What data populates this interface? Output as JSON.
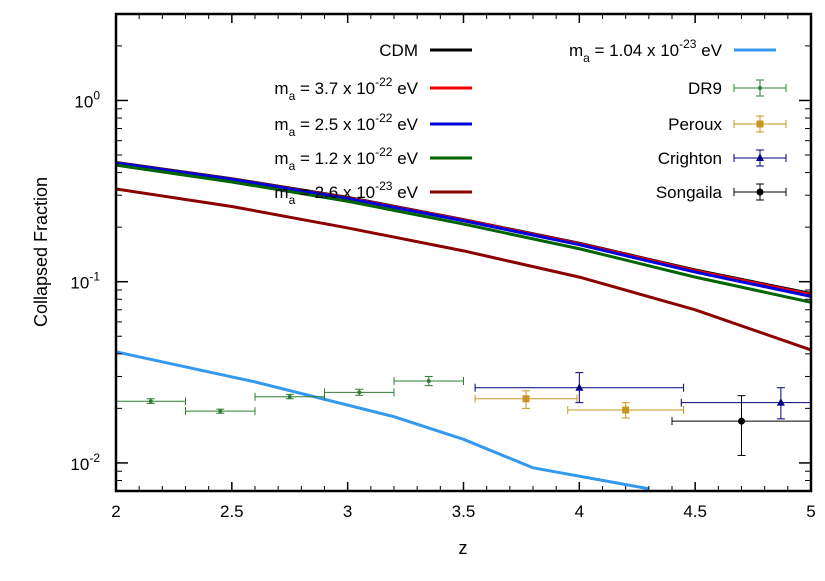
{
  "chart_data": {
    "type": "line",
    "xlabel": "z",
    "ylabel": "Collapsed Fraction",
    "xlim": [
      2,
      5
    ],
    "ylim": [
      0.007,
      3
    ],
    "yscale": "log",
    "grid": false,
    "legend_position": "top, two columns",
    "x_ticks": [
      {
        "value": 2,
        "label": "2"
      },
      {
        "value": 2.5,
        "label": "2.5"
      },
      {
        "value": 3,
        "label": "3"
      },
      {
        "value": 3.5,
        "label": "3.5"
      },
      {
        "value": 4,
        "label": "4"
      },
      {
        "value": 4.5,
        "label": "4.5"
      },
      {
        "value": 5,
        "label": "5"
      }
    ],
    "y_ticks": [
      {
        "value": 0.01,
        "base": "10",
        "exp": "-2"
      },
      {
        "value": 0.1,
        "base": "10",
        "exp": "-1"
      },
      {
        "value": 1,
        "base": "10",
        "exp": "0"
      }
    ],
    "series": [
      {
        "name": "CDM",
        "label_parts": [
          "CDM"
        ],
        "color": "#000000",
        "x": [
          2,
          2.5,
          3,
          3.5,
          4,
          4.5,
          5
        ],
        "y": [
          0.455,
          0.37,
          0.292,
          0.22,
          0.163,
          0.116,
          0.086
        ]
      },
      {
        "name": "m_a = 3.7 x 10^-22 eV",
        "label_parts": [
          "m",
          "a",
          " = 3.7 x 10",
          "-22",
          " eV"
        ],
        "color": "#ee0000",
        "x": [
          2,
          2.5,
          3,
          3.5,
          4,
          4.5,
          5
        ],
        "y": [
          0.453,
          0.368,
          0.29,
          0.219,
          0.162,
          0.115,
          0.085
        ]
      },
      {
        "name": "m_a = 2.5 x 10^-22 eV",
        "label_parts": [
          "m",
          "a",
          " = 2.5 x 10",
          "-22",
          " eV"
        ],
        "color": "#0000dd",
        "x": [
          2,
          2.5,
          3,
          3.5,
          4,
          4.5,
          5
        ],
        "y": [
          0.452,
          0.367,
          0.288,
          0.217,
          0.16,
          0.113,
          0.083
        ]
      },
      {
        "name": "m_a = 1.2 x 10^-22 eV",
        "label_parts": [
          "m",
          "a",
          " = 1.2 x 10",
          "-22",
          " eV"
        ],
        "color": "#006400",
        "x": [
          2,
          2.5,
          3,
          3.5,
          4,
          4.5,
          5
        ],
        "y": [
          0.44,
          0.355,
          0.278,
          0.208,
          0.152,
          0.106,
          0.077
        ]
      },
      {
        "name": "m_a = 2.6 x 10^-23 eV",
        "label_parts": [
          "m",
          "a",
          " = 2.6 x 10",
          "-23",
          " eV"
        ],
        "color": "#8b0000",
        "x": [
          2,
          2.5,
          3,
          3.5,
          4,
          4.5,
          5
        ],
        "y": [
          0.325,
          0.26,
          0.198,
          0.148,
          0.106,
          0.07,
          0.042
        ]
      },
      {
        "name": "m_a = 1.04 x 10^-23 eV",
        "label_parts": [
          "m",
          "a",
          " = 1.04 x 10",
          "-23",
          " eV"
        ],
        "color": "#3399ee",
        "x": [
          2,
          2.6,
          3.2,
          3.5,
          3.8,
          4.3
        ],
        "y": [
          0.041,
          0.028,
          0.018,
          0.0135,
          0.0094,
          0.0072
        ]
      }
    ],
    "error_series": [
      {
        "name": "DR9",
        "color": "#2e7d32",
        "marker": "dot",
        "points": [
          {
            "x": 2.15,
            "xerr": 0.15,
            "y": 0.0219,
            "ylo": 0.0213,
            "yhi": 0.0226
          },
          {
            "x": 2.45,
            "xerr": 0.15,
            "y": 0.0193,
            "ylo": 0.0188,
            "yhi": 0.0198
          },
          {
            "x": 2.75,
            "xerr": 0.15,
            "y": 0.0232,
            "ylo": 0.0226,
            "yhi": 0.0239
          },
          {
            "x": 3.05,
            "xerr": 0.15,
            "y": 0.0245,
            "ylo": 0.0236,
            "yhi": 0.0255
          },
          {
            "x": 3.35,
            "xerr": 0.15,
            "y": 0.0283,
            "ylo": 0.0267,
            "yhi": 0.03
          }
        ]
      },
      {
        "name": "Peroux",
        "color": "#c8961e",
        "marker": "square",
        "points": [
          {
            "x": 3.77,
            "xerr": 0.22,
            "y": 0.0226,
            "ylo": 0.02,
            "yhi": 0.025
          },
          {
            "x": 4.2,
            "xerr": 0.25,
            "y": 0.0196,
            "ylo": 0.0177,
            "yhi": 0.0215
          }
        ]
      },
      {
        "name": "Crighton",
        "color": "#000080",
        "marker": "triangle",
        "points": [
          {
            "x": 4.0,
            "xerr": 0.45,
            "y": 0.026,
            "ylo": 0.0215,
            "yhi": 0.0315
          },
          {
            "x": 4.87,
            "xerr": 0.43,
            "y": 0.0215,
            "ylo": 0.0175,
            "yhi": 0.026
          }
        ]
      },
      {
        "name": "Songaila",
        "color": "#000000",
        "marker": "circle",
        "points": [
          {
            "x": 4.7,
            "xerr": 0.3,
            "y": 0.017,
            "ylo": 0.011,
            "yhi": 0.0235
          }
        ]
      }
    ]
  }
}
